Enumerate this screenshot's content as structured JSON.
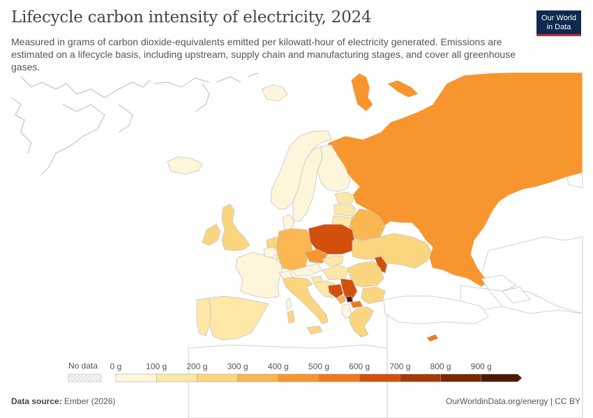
{
  "header": {
    "title": "Lifecycle carbon intensity of electricity, 2024",
    "subtitle": "Measured in grams of carbon dioxide-equivalents emitted per kilowatt-hour of electricity generated. Emissions are estimated on a lifecycle basis, including upstream, supply chain and manufacturing stages, and cover all greenhouse gases.",
    "logo_line1": "Our World",
    "logo_line2": "in Data"
  },
  "legend": {
    "no_data_label": "No data",
    "bins": [
      "0 g",
      "100 g",
      "200 g",
      "300 g",
      "400 g",
      "500 g",
      "600 g",
      "700 g",
      "800 g",
      "900 g"
    ],
    "colors": [
      "#fef6da",
      "#fde8a8",
      "#fcd67e",
      "#f9b651",
      "#f7962f",
      "#ee7a1f",
      "#d2500c",
      "#a33a07",
      "#7a2803",
      "#4d1902"
    ],
    "no_data_color": "#e8e8e8"
  },
  "footer": {
    "source_label": "Data source:",
    "source_value": "Ember (2026)",
    "credit": "OurWorldinData.org/energy | CC BY"
  }
}
